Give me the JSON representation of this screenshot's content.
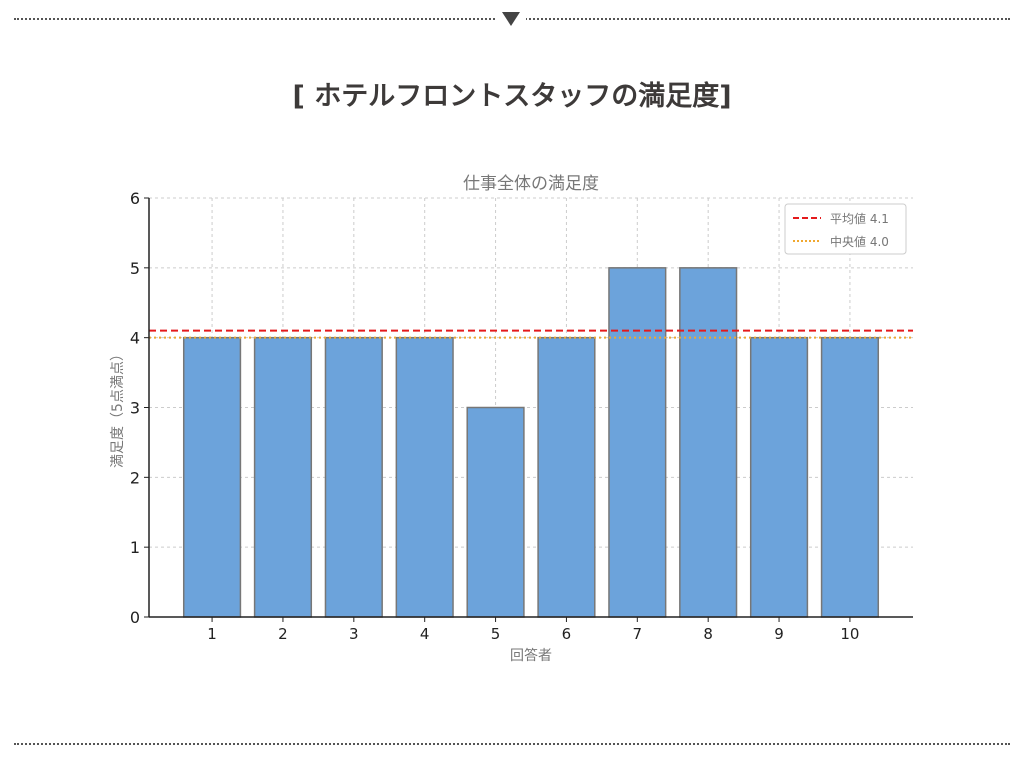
{
  "page": {
    "title": "[ ホテルフロントスタッフの満足度]"
  },
  "chart_data": {
    "type": "bar",
    "title": "仕事全体の満足度",
    "xlabel": "回答者",
    "ylabel": "満足度（5点満点）",
    "categories": [
      "1",
      "2",
      "3",
      "4",
      "5",
      "6",
      "7",
      "8",
      "9",
      "10"
    ],
    "values": [
      4,
      4,
      4,
      4,
      3,
      4,
      5,
      5,
      4,
      4
    ],
    "ylim": [
      0,
      6
    ],
    "yticks": [
      "0",
      "1",
      "2",
      "3",
      "4",
      "5",
      "6"
    ],
    "grid": true,
    "bar_color": "#6ca3db",
    "bar_edge_color": "#777777",
    "reference_lines": [
      {
        "label": "平均値 4.1",
        "value": 4.1,
        "color": "#e41a1c",
        "style": "dashed"
      },
      {
        "label": "中央値 4.0",
        "value": 4.0,
        "color": "#f0a830",
        "style": "dotted"
      }
    ],
    "legend_position": "top-right"
  }
}
